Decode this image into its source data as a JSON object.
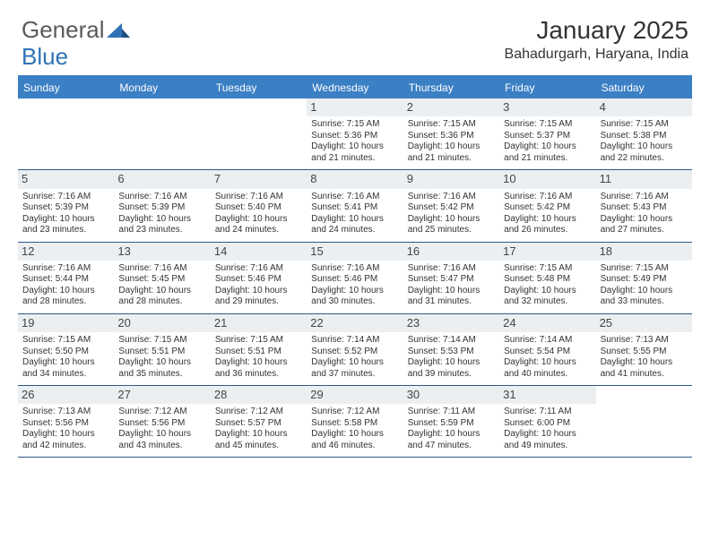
{
  "brand": {
    "part1": "General",
    "part2": "Blue",
    "color1": "#5a5a5a",
    "color2": "#2f73b7"
  },
  "month_title": "January 2025",
  "location": "Bahadurgarh, Haryana, India",
  "colors": {
    "header_bg": "#3b7fc4",
    "week_border": "#2f5b8a",
    "num_bg": "#eceff1"
  },
  "day_names": [
    "Sunday",
    "Monday",
    "Tuesday",
    "Wednesday",
    "Thursday",
    "Friday",
    "Saturday"
  ],
  "weeks": [
    [
      null,
      null,
      null,
      {
        "n": "1",
        "sr": "7:15 AM",
        "ss": "5:36 PM",
        "dl": "10 hours and 21 minutes."
      },
      {
        "n": "2",
        "sr": "7:15 AM",
        "ss": "5:36 PM",
        "dl": "10 hours and 21 minutes."
      },
      {
        "n": "3",
        "sr": "7:15 AM",
        "ss": "5:37 PM",
        "dl": "10 hours and 21 minutes."
      },
      {
        "n": "4",
        "sr": "7:15 AM",
        "ss": "5:38 PM",
        "dl": "10 hours and 22 minutes."
      }
    ],
    [
      {
        "n": "5",
        "sr": "7:16 AM",
        "ss": "5:39 PM",
        "dl": "10 hours and 23 minutes."
      },
      {
        "n": "6",
        "sr": "7:16 AM",
        "ss": "5:39 PM",
        "dl": "10 hours and 23 minutes."
      },
      {
        "n": "7",
        "sr": "7:16 AM",
        "ss": "5:40 PM",
        "dl": "10 hours and 24 minutes."
      },
      {
        "n": "8",
        "sr": "7:16 AM",
        "ss": "5:41 PM",
        "dl": "10 hours and 24 minutes."
      },
      {
        "n": "9",
        "sr": "7:16 AM",
        "ss": "5:42 PM",
        "dl": "10 hours and 25 minutes."
      },
      {
        "n": "10",
        "sr": "7:16 AM",
        "ss": "5:42 PM",
        "dl": "10 hours and 26 minutes."
      },
      {
        "n": "11",
        "sr": "7:16 AM",
        "ss": "5:43 PM",
        "dl": "10 hours and 27 minutes."
      }
    ],
    [
      {
        "n": "12",
        "sr": "7:16 AM",
        "ss": "5:44 PM",
        "dl": "10 hours and 28 minutes."
      },
      {
        "n": "13",
        "sr": "7:16 AM",
        "ss": "5:45 PM",
        "dl": "10 hours and 28 minutes."
      },
      {
        "n": "14",
        "sr": "7:16 AM",
        "ss": "5:46 PM",
        "dl": "10 hours and 29 minutes."
      },
      {
        "n": "15",
        "sr": "7:16 AM",
        "ss": "5:46 PM",
        "dl": "10 hours and 30 minutes."
      },
      {
        "n": "16",
        "sr": "7:16 AM",
        "ss": "5:47 PM",
        "dl": "10 hours and 31 minutes."
      },
      {
        "n": "17",
        "sr": "7:15 AM",
        "ss": "5:48 PM",
        "dl": "10 hours and 32 minutes."
      },
      {
        "n": "18",
        "sr": "7:15 AM",
        "ss": "5:49 PM",
        "dl": "10 hours and 33 minutes."
      }
    ],
    [
      {
        "n": "19",
        "sr": "7:15 AM",
        "ss": "5:50 PM",
        "dl": "10 hours and 34 minutes."
      },
      {
        "n": "20",
        "sr": "7:15 AM",
        "ss": "5:51 PM",
        "dl": "10 hours and 35 minutes."
      },
      {
        "n": "21",
        "sr": "7:15 AM",
        "ss": "5:51 PM",
        "dl": "10 hours and 36 minutes."
      },
      {
        "n": "22",
        "sr": "7:14 AM",
        "ss": "5:52 PM",
        "dl": "10 hours and 37 minutes."
      },
      {
        "n": "23",
        "sr": "7:14 AM",
        "ss": "5:53 PM",
        "dl": "10 hours and 39 minutes."
      },
      {
        "n": "24",
        "sr": "7:14 AM",
        "ss": "5:54 PM",
        "dl": "10 hours and 40 minutes."
      },
      {
        "n": "25",
        "sr": "7:13 AM",
        "ss": "5:55 PM",
        "dl": "10 hours and 41 minutes."
      }
    ],
    [
      {
        "n": "26",
        "sr": "7:13 AM",
        "ss": "5:56 PM",
        "dl": "10 hours and 42 minutes."
      },
      {
        "n": "27",
        "sr": "7:12 AM",
        "ss": "5:56 PM",
        "dl": "10 hours and 43 minutes."
      },
      {
        "n": "28",
        "sr": "7:12 AM",
        "ss": "5:57 PM",
        "dl": "10 hours and 45 minutes."
      },
      {
        "n": "29",
        "sr": "7:12 AM",
        "ss": "5:58 PM",
        "dl": "10 hours and 46 minutes."
      },
      {
        "n": "30",
        "sr": "7:11 AM",
        "ss": "5:59 PM",
        "dl": "10 hours and 47 minutes."
      },
      {
        "n": "31",
        "sr": "7:11 AM",
        "ss": "6:00 PM",
        "dl": "10 hours and 49 minutes."
      },
      null
    ]
  ],
  "labels": {
    "sunrise": "Sunrise: ",
    "sunset": "Sunset: ",
    "daylight": "Daylight: "
  }
}
